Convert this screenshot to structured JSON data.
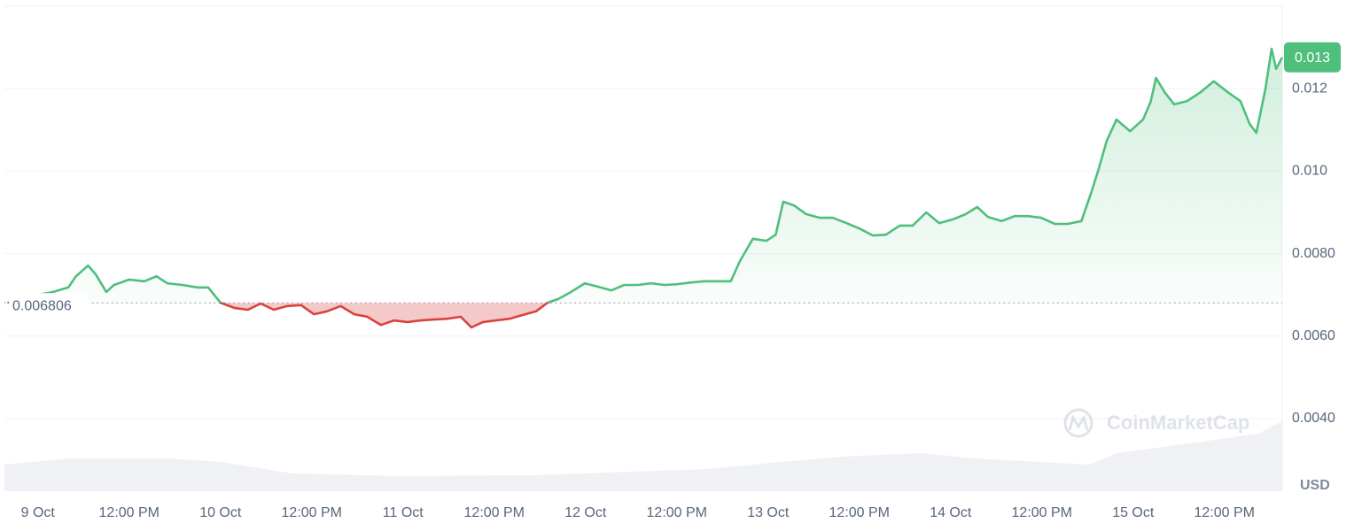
{
  "chart_data": {
    "type": "line",
    "currency": "USD",
    "watermark": "CoinMarketCap",
    "baseline": {
      "value": 0.006806,
      "label": "0.006806"
    },
    "last_price_label": "0.013",
    "up_color": "#4fbf7c",
    "down_color": "#d9423f",
    "xlim": [
      -4.4,
      163.6
    ],
    "xticks": [
      {
        "value": 0,
        "label": "9 Oct"
      },
      {
        "value": 12,
        "label": "12:00 PM"
      },
      {
        "value": 24,
        "label": "10 Oct"
      },
      {
        "value": 36,
        "label": "12:00 PM"
      },
      {
        "value": 48,
        "label": "11 Oct"
      },
      {
        "value": 60,
        "label": "12:00 PM"
      },
      {
        "value": 72,
        "label": "12 Oct"
      },
      {
        "value": 84,
        "label": "12:00 PM"
      },
      {
        "value": 96,
        "label": "13 Oct"
      },
      {
        "value": 108,
        "label": "12:00 PM"
      },
      {
        "value": 120,
        "label": "14 Oct"
      },
      {
        "value": 132,
        "label": "12:00 PM"
      },
      {
        "value": 144,
        "label": "15 Oct"
      },
      {
        "value": 156,
        "label": "12:00 PM"
      }
    ],
    "ylim": [
      0.00224,
      0.014
    ],
    "yticks": [
      0.012,
      {
        "value": 0.01,
        "label": "0.010"
      },
      {
        "value": 0.008,
        "label": "0.0080"
      },
      {
        "value": 0.006,
        "label": "0.0060"
      },
      {
        "value": 0.004,
        "label": "0.0040"
      }
    ],
    "grid": true,
    "x": [
      -4,
      -2,
      0,
      2,
      4,
      5,
      6.6,
      7.6,
      9,
      10,
      12,
      14,
      15.6,
      17,
      19,
      21,
      22.4,
      24,
      25.9,
      27.6,
      29.3,
      31,
      32.8,
      34.6,
      36.3,
      38,
      39.8,
      41.6,
      43.3,
      45.1,
      46.8,
      48.6,
      50.3,
      52,
      53.8,
      55.6,
      57,
      58.5,
      60.2,
      62,
      63.7,
      65.5,
      67,
      68.4,
      70.1,
      71.9,
      73.6,
      75.4,
      77.1,
      78.9,
      80.6,
      82.4,
      84.1,
      85.9,
      87.6,
      89.4,
      91.1,
      92.3,
      94,
      95.8,
      97,
      98,
      99.4,
      101,
      102.8,
      104.5,
      106.3,
      108,
      109.8,
      111.5,
      113.3,
      115,
      116.8,
      118.5,
      120.3,
      122,
      123.5,
      124.9,
      126.7,
      128.4,
      130.2,
      131.9,
      133.7,
      135.4,
      137.2,
      138.6,
      139.5,
      140.5,
      141.8,
      143.6,
      145.3,
      146.3,
      147,
      148.2,
      149.4,
      151.1,
      152.9,
      154.6,
      156.4,
      158.1,
      159.3,
      160.2,
      161.4,
      162.2,
      162.8,
      163.6
    ],
    "values": [
      0.00681,
      0.0069,
      0.007,
      0.00707,
      0.00718,
      0.00745,
      0.00771,
      0.0075,
      0.00707,
      0.00724,
      0.00737,
      0.00733,
      0.00745,
      0.00728,
      0.00724,
      0.00718,
      0.00718,
      0.00681,
      0.00668,
      0.00664,
      0.00679,
      0.00664,
      0.00673,
      0.00675,
      0.00653,
      0.0066,
      0.00673,
      0.00653,
      0.00647,
      0.00627,
      0.00638,
      0.00634,
      0.00638,
      0.0064,
      0.00642,
      0.00647,
      0.00621,
      0.00634,
      0.00638,
      0.00642,
      0.00651,
      0.0066,
      0.00681,
      0.0069,
      0.00707,
      0.00728,
      0.0072,
      0.00711,
      0.00724,
      0.00724,
      0.00728,
      0.00724,
      0.00726,
      0.0073,
      0.00733,
      0.00733,
      0.00733,
      0.00782,
      0.00836,
      0.00831,
      0.00846,
      0.00926,
      0.00917,
      0.00896,
      0.00887,
      0.00887,
      0.00874,
      0.00861,
      0.00844,
      0.00846,
      0.00868,
      0.00868,
      0.009,
      0.00874,
      0.00883,
      0.00896,
      0.00913,
      0.00889,
      0.00879,
      0.00891,
      0.00891,
      0.00887,
      0.00872,
      0.00872,
      0.00879,
      0.00954,
      0.01007,
      0.01072,
      0.01125,
      0.01097,
      0.01125,
      0.01168,
      0.01226,
      0.0119,
      0.01162,
      0.0117,
      0.01192,
      0.01218,
      0.01192,
      0.0117,
      0.01115,
      0.01093,
      0.012,
      0.01297,
      0.01248,
      0.01276
    ]
  }
}
